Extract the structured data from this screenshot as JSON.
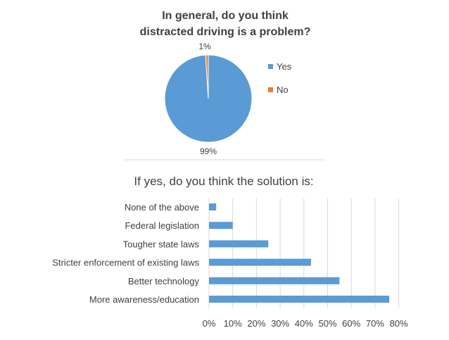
{
  "colors": {
    "background": "#ffffff",
    "yes": "#5b9bd5",
    "no": "#ed7d31",
    "bar": "#5b9bd5",
    "text": "#404040",
    "grid": "#d9d9d9",
    "divider": "#d9d9d9"
  },
  "chart_data": [
    {
      "type": "pie",
      "title": "In general, do you think distracted driving is a problem?",
      "title_lines": [
        "In general, do you think",
        "distracted driving is a problem?"
      ],
      "categories": [
        "Yes",
        "No"
      ],
      "values": [
        99,
        1
      ],
      "data_labels": [
        "99%",
        "1%"
      ],
      "legend": {
        "placement": "right",
        "entries": [
          "Yes",
          "No"
        ]
      }
    },
    {
      "type": "bar",
      "orientation": "horizontal",
      "title": "If yes, do you think the solution is:",
      "categories": [
        "None of the above",
        "Federal legislation",
        "Tougher state laws",
        "Stricter enforcement of existing laws",
        "Better technology",
        "More awareness/education"
      ],
      "values": [
        3,
        10,
        25,
        43,
        55,
        76
      ],
      "xlim": [
        0,
        80
      ],
      "xticks": [
        "0%",
        "10%",
        "20%",
        "30%",
        "40%",
        "50%",
        "60%",
        "70%",
        "80%"
      ],
      "grid": true
    }
  ]
}
